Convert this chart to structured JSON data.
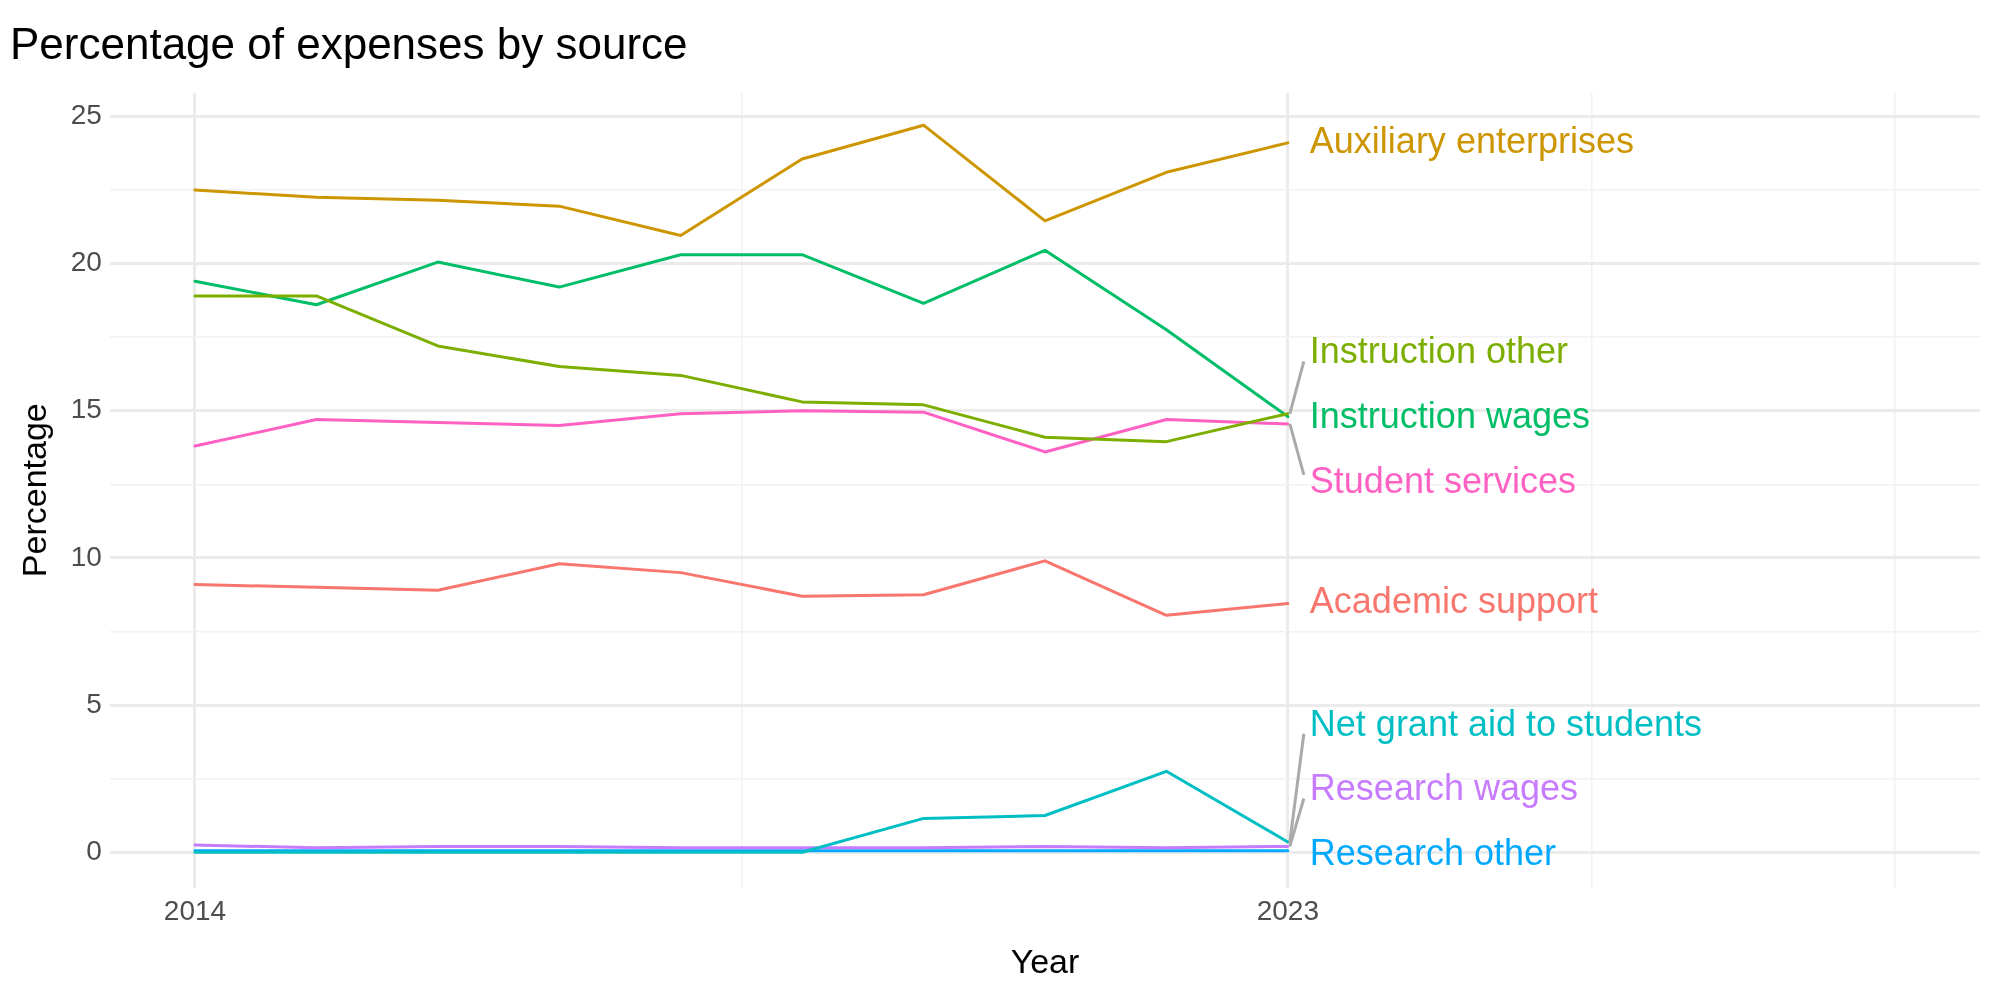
{
  "chart_data": {
    "type": "line",
    "title": "Percentage of expenses by source",
    "xlabel": "Year",
    "ylabel": "Percentage",
    "x": [
      2014,
      2015,
      2016,
      2017,
      2018,
      2019,
      2020,
      2021,
      2022,
      2023
    ],
    "series": [
      {
        "name": "Auxiliary enterprises",
        "color": "#cd9600",
        "values": [
          22.5,
          22.25,
          22.15,
          21.95,
          20.95,
          23.55,
          24.7,
          21.45,
          23.1,
          24.1
        ]
      },
      {
        "name": "Instruction other",
        "color": "#7cae00",
        "values": [
          18.9,
          18.9,
          17.2,
          16.5,
          16.2,
          15.3,
          15.2,
          14.1,
          13.95,
          14.9
        ]
      },
      {
        "name": "Instruction wages",
        "color": "#00be67",
        "values": [
          19.4,
          18.6,
          20.05,
          19.2,
          20.3,
          20.3,
          18.65,
          20.45,
          17.75,
          14.8
        ]
      },
      {
        "name": "Student services",
        "color": "#ff61c3",
        "values": [
          13.8,
          14.7,
          14.6,
          14.5,
          14.9,
          15.0,
          14.95,
          13.6,
          14.7,
          14.55
        ]
      },
      {
        "name": "Academic support",
        "color": "#f8766d",
        "values": [
          9.1,
          9.0,
          8.9,
          9.8,
          9.5,
          8.7,
          8.75,
          9.9,
          8.05,
          8.45
        ]
      },
      {
        "name": "Net grant aid to students",
        "color": "#00bfc4",
        "values": [
          0.0,
          0.0,
          0.0,
          0.0,
          0.0,
          0.0,
          1.15,
          1.25,
          2.75,
          0.35
        ]
      },
      {
        "name": "Research wages",
        "color": "#c77cff",
        "values": [
          0.25,
          0.15,
          0.2,
          0.2,
          0.15,
          0.15,
          0.15,
          0.2,
          0.15,
          0.2
        ]
      },
      {
        "name": "Research other",
        "color": "#00a9ff",
        "values": [
          0.05,
          0.05,
          0.05,
          0.05,
          0.05,
          0.05,
          0.05,
          0.05,
          0.05,
          0.05
        ]
      }
    ],
    "xlim": [
      2013.3,
      2028.7
    ],
    "xticks": [
      2014,
      {
        "value": 2018.5,
        "label": null
      },
      2023,
      {
        "value": 2025.5,
        "label": null
      },
      {
        "value": 2028,
        "label": null
      }
    ],
    "ylim": [
      -1.2,
      25.8
    ],
    "yticks": [
      0,
      {
        "value": 2.5,
        "label": null
      },
      5,
      {
        "value": 7.5,
        "label": null
      },
      10,
      {
        "value": 12.5,
        "label": null
      },
      15,
      {
        "value": 17.5,
        "label": null
      },
      20,
      {
        "value": 22.5,
        "label": null
      },
      25
    ],
    "grid": true,
    "legend": false,
    "marker": "none",
    "line_style": "solid"
  }
}
